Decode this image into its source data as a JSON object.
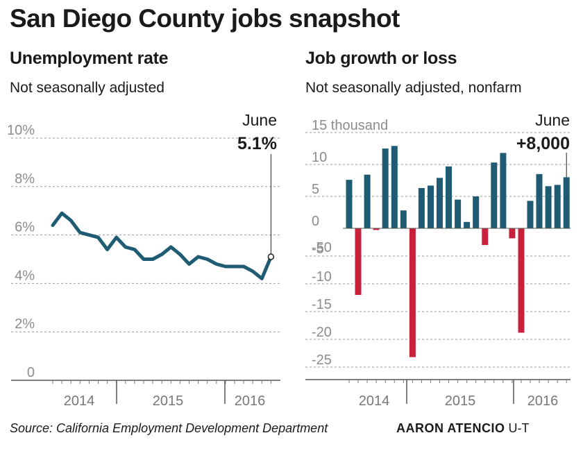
{
  "title": "San Diego County jobs snapshot",
  "footer": {
    "source": "Source: California Employment Development Department",
    "credit_name": "AARON ATENCIO",
    "credit_org": "U-T"
  },
  "colors": {
    "line": "#1f5c73",
    "positive": "#1f5c73",
    "negative": "#c8213b",
    "grid": "#9a9a9a",
    "tick": "#8c8c8c"
  },
  "chart_data": [
    {
      "type": "line",
      "title": "Unemployment rate",
      "subtitle": "Not seasonally adjusted",
      "ylim": [
        0,
        10
      ],
      "y_ticks": [
        {
          "value": 0,
          "label": "0"
        },
        {
          "value": 2,
          "label": "2%"
        },
        {
          "value": 4,
          "label": "4%"
        },
        {
          "value": 6,
          "label": "6%"
        },
        {
          "value": 8,
          "label": "8%"
        },
        {
          "value": 10,
          "label": "10%"
        }
      ],
      "x_labels": [
        "2014",
        "2015",
        "2016"
      ],
      "annotation": {
        "month": "June",
        "value_label": "5.1%"
      },
      "series": [
        {
          "values": [
            6.4,
            6.9,
            6.6,
            6.1,
            6.0,
            5.9,
            5.4,
            5.9,
            5.5,
            5.4,
            5.0,
            5.0,
            5.2,
            5.5,
            5.2,
            4.8,
            5.1,
            5.0,
            4.8,
            4.7,
            4.7,
            4.7,
            4.5,
            4.2,
            5.1
          ]
        }
      ]
    },
    {
      "type": "bar",
      "title": "Job growth or loss",
      "subtitle": "Not seasonally adjusted, nonfarm",
      "y_ticks": [
        {
          "value": -25,
          "label": "-25"
        },
        {
          "value": -20,
          "label": "-20"
        },
        {
          "value": -15,
          "label": "-15"
        },
        {
          "value": -10,
          "label": "-10"
        },
        {
          "value": -5,
          "label": "-5"
        },
        {
          "value": 0,
          "label": "0"
        },
        {
          "value": 5,
          "label": "5"
        },
        {
          "value": 10,
          "label": "10"
        },
        {
          "value": 15,
          "label": "15 thousand"
        }
      ],
      "neg_tick_labels": [
        "-50"
      ],
      "x_labels": [
        "2014",
        "2015",
        "2016"
      ],
      "annotation": {
        "month": "June",
        "value_label": "+8,000"
      },
      "series": [
        {
          "values": [
            7.6,
            -12.0,
            8.4,
            -0.3,
            12.5,
            12.9,
            2.8,
            -23.2,
            6.3,
            6.7,
            7.9,
            9.7,
            4.5,
            1.0,
            5.0,
            -3.0,
            10.3,
            11.8,
            -1.8,
            -18.8,
            4.3,
            8.5,
            6.6,
            6.8,
            8.0
          ]
        }
      ]
    }
  ]
}
